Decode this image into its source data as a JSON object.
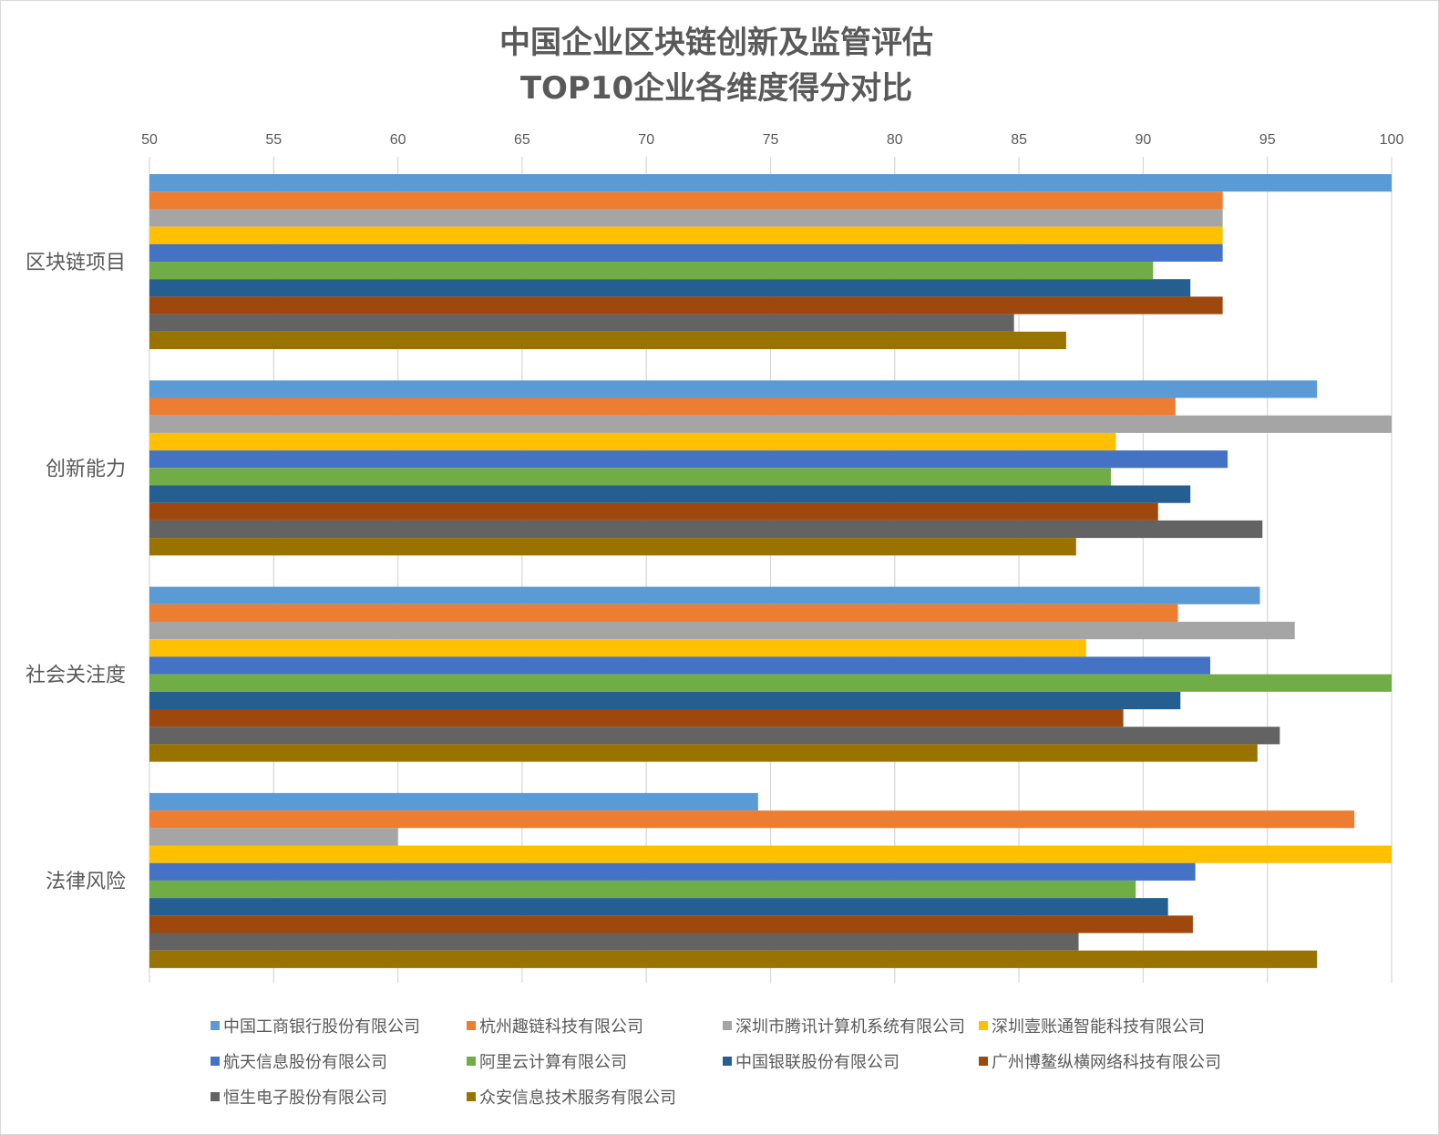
{
  "chart_data": {
    "type": "bar",
    "orientation": "horizontal",
    "title": [
      "中国企业区块链创新及监管评估",
      "TOP10企业各维度得分对比"
    ],
    "categories": [
      "区块链项目",
      "创新能力",
      "社会关注度",
      "法律风险"
    ],
    "xlim": [
      50,
      100
    ],
    "xticks": [
      50,
      55,
      60,
      65,
      70,
      75,
      80,
      85,
      90,
      95,
      100
    ],
    "grid": "vertical",
    "legend_position": "bottom",
    "series": [
      {
        "name": "中国工商银行股份有限公司",
        "color": "#5B9BD5",
        "values": [
          100,
          97,
          94.7,
          74.5
        ]
      },
      {
        "name": "杭州趣链科技有限公司",
        "color": "#ED7D31",
        "values": [
          93.2,
          91.3,
          91.4,
          98.5
        ]
      },
      {
        "name": "深圳市腾讯计算机系统有限公司",
        "color": "#A5A5A5",
        "values": [
          93.2,
          100,
          96.1,
          60.0
        ]
      },
      {
        "name": "深圳壹账通智能科技有限公司",
        "color": "#FFC000",
        "values": [
          93.2,
          88.9,
          87.7,
          100
        ]
      },
      {
        "name": "航天信息股份有限公司",
        "color": "#4472C4",
        "values": [
          93.2,
          93.4,
          92.7,
          92.1
        ]
      },
      {
        "name": "阿里云计算有限公司",
        "color": "#70AD47",
        "values": [
          90.4,
          88.7,
          100,
          89.7
        ]
      },
      {
        "name": "中国银联股份有限公司",
        "color": "#255E91",
        "values": [
          91.9,
          91.9,
          91.5,
          91.0
        ]
      },
      {
        "name": "广州博鳌纵横网络科技有限公司",
        "color": "#9E480E",
        "values": [
          93.2,
          90.6,
          89.2,
          92.0
        ]
      },
      {
        "name": "恒生电子股份有限公司",
        "color": "#636363",
        "values": [
          84.8,
          94.8,
          95.5,
          87.4
        ]
      },
      {
        "name": "众安信息技术服务有限公司",
        "color": "#997300",
        "values": [
          86.9,
          87.3,
          94.6,
          97.0
        ]
      }
    ]
  }
}
